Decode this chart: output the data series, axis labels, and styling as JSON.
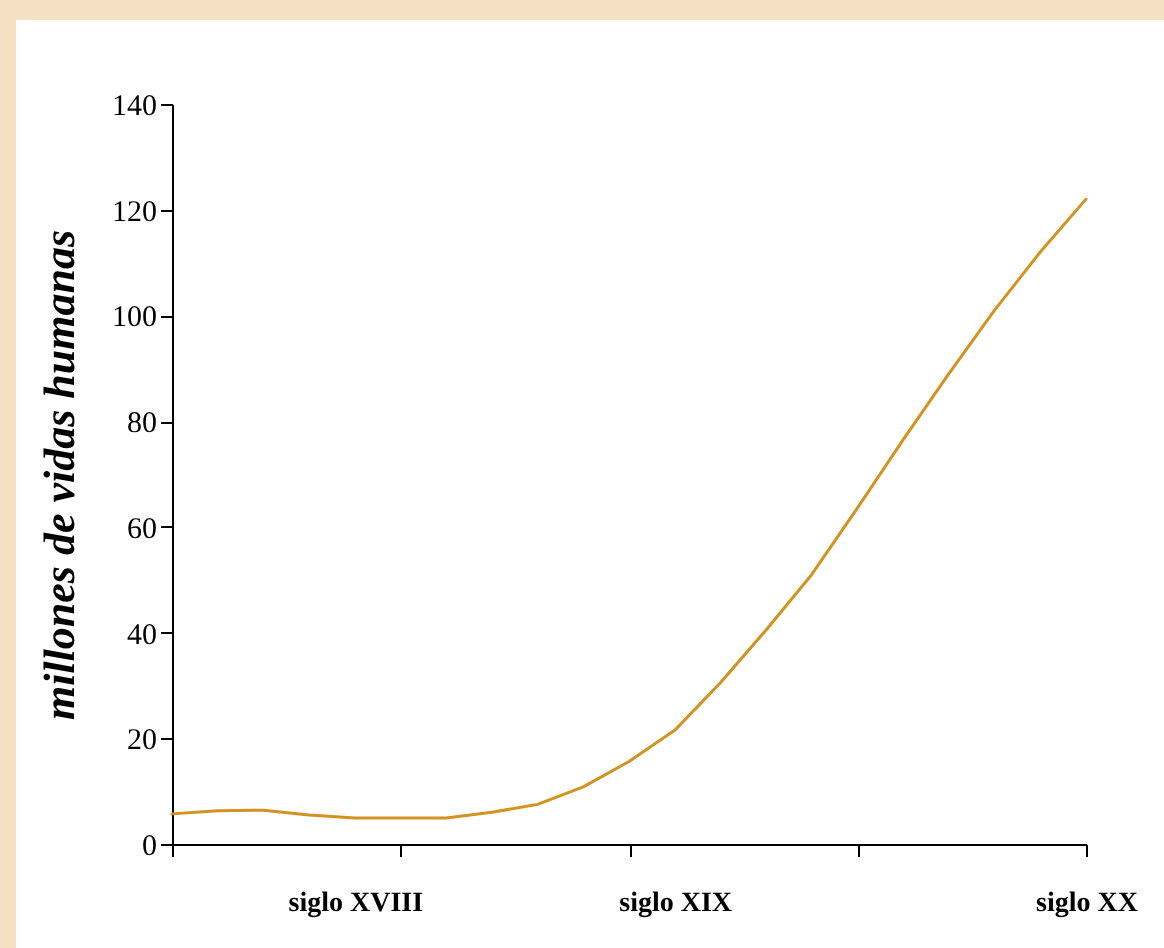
{
  "chart_data": {
    "type": "line",
    "ylabel": "millones de vidas humanas",
    "categories": [
      null,
      null,
      null,
      null,
      "siglo XVIII",
      null,
      null,
      null,
      null,
      null,
      null,
      "siglo XIX",
      null,
      null,
      null,
      null,
      null,
      null,
      null,
      null,
      "siglo XX"
    ],
    "series": [
      {
        "color": "#d4921e",
        "values": [
          5.7,
          6.3,
          6.4,
          5.5,
          4.9,
          4.9,
          4.9,
          6.0,
          7.5,
          10.8,
          15.6,
          21.5,
          30.5,
          40.5,
          51,
          63.6,
          76.5,
          89,
          101,
          112,
          122
        ]
      }
    ],
    "ylim": [
      0,
      140
    ],
    "yticks": [
      0,
      20,
      40,
      60,
      80,
      100,
      120,
      140
    ],
    "grid": false,
    "marker": "none",
    "line_style": "solid"
  }
}
